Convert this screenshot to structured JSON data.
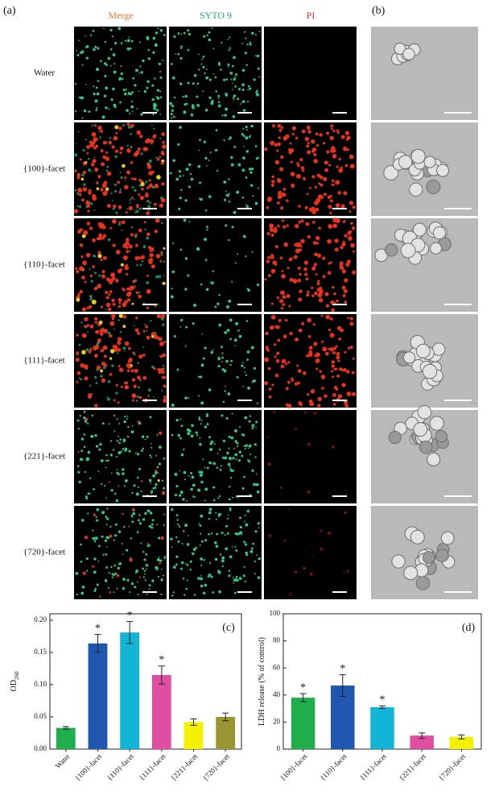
{
  "panel_labels": {
    "a": "(a)",
    "b": "(b)"
  },
  "columns": [
    "Merge",
    "SYTO 9",
    "PI"
  ],
  "rows": [
    "Water",
    "{100}-facet",
    "{110}-facet",
    "{111}-facet",
    "{221}-facet",
    "{720}-facet"
  ],
  "chart_data": [
    {
      "type": "bar",
      "panel_label": "(c)",
      "ylabel": "OD",
      "ylabel_sub": "260",
      "categories": [
        "Water",
        "{100}-facet",
        "{110}-facet",
        "{111}-facet",
        "{221}-facet",
        "{720}-facet"
      ],
      "values": [
        0.033,
        0.164,
        0.181,
        0.115,
        0.042,
        0.05
      ],
      "errors": [
        0.002,
        0.014,
        0.017,
        0.014,
        0.005,
        0.006
      ],
      "significance": [
        null,
        "*",
        "*",
        "*",
        null,
        null
      ],
      "colors": [
        "#1fae4b",
        "#1e56b0",
        "#12b4d6",
        "#e04ea0",
        "#f3f000",
        "#9a9533"
      ],
      "ylim": [
        0,
        0.21
      ],
      "yticks": [
        {
          "value": 0,
          "label": "0.00"
        },
        {
          "value": 0.05,
          "label": "0.05"
        },
        {
          "value": 0.1,
          "label": "0.10"
        },
        {
          "value": 0.15,
          "label": "0.15"
        },
        {
          "value": 0.2,
          "label": "0.20"
        }
      ]
    },
    {
      "type": "bar",
      "panel_label": "(d)",
      "ylabel": "LDH release (% of control)",
      "categories": [
        "{100}-facet",
        "{110}-facet",
        "{111}-facet",
        "{221}-facet",
        "{720}-facet"
      ],
      "values": [
        38,
        47,
        31,
        10,
        9
      ],
      "errors": [
        3,
        8,
        1,
        2,
        1.5
      ],
      "significance": [
        "*",
        "*",
        "*",
        null,
        null
      ],
      "colors": [
        "#1fae4b",
        "#1e56b0",
        "#12b4d6",
        "#e04ea0",
        "#f3f000"
      ],
      "ylim": [
        0,
        100
      ],
      "yticks": [
        0,
        20,
        40,
        60,
        80,
        100
      ]
    }
  ]
}
